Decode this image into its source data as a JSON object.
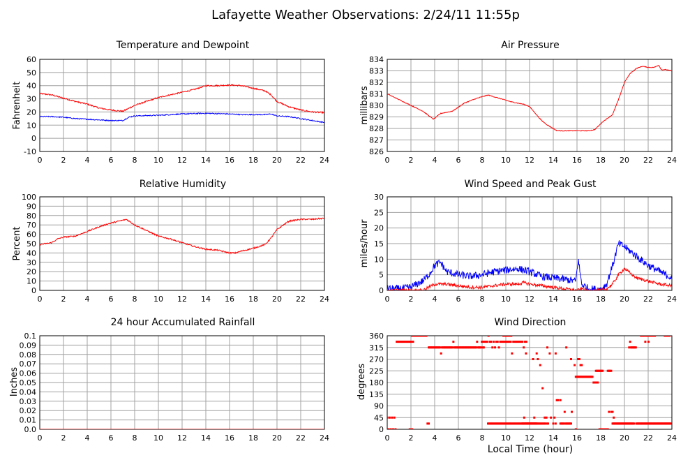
{
  "page": {
    "title": "Lafayette Weather Observations: 2/24/11 11:55p",
    "xlabel": "Local Time (hour)"
  },
  "colors": {
    "red": "#ff0000",
    "blue": "#0000ff",
    "grid": "#a0a0a0",
    "frame": "#000000"
  },
  "chart_data": [
    {
      "id": "temp",
      "type": "line",
      "title": "Temperature and Dewpoint",
      "ylabel": "Fahrenheit",
      "xlim": [
        0,
        24
      ],
      "ylim": [
        -10,
        60
      ],
      "xticks": [
        "0",
        "2",
        "4",
        "6",
        "8",
        "10",
        "12",
        "14",
        "16",
        "18",
        "20",
        "22",
        "24"
      ],
      "yticks": [
        "-10",
        "0",
        "10",
        "20",
        "30",
        "40",
        "50",
        "60"
      ],
      "series": [
        {
          "color": "#ff0000",
          "x": [
            0,
            1,
            2,
            3,
            4,
            5,
            6,
            7,
            8,
            9,
            10,
            11,
            12,
            13,
            14,
            15,
            16,
            17,
            18,
            19,
            19.5,
            20,
            21,
            22,
            23,
            24
          ],
          "y": [
            34,
            33,
            30.5,
            28,
            26,
            23,
            21.5,
            20.5,
            25,
            28,
            31,
            33,
            35,
            37,
            40,
            40,
            40.5,
            40,
            38,
            36,
            33,
            28,
            24,
            21.5,
            20,
            19.5
          ],
          "noise": 0.5
        },
        {
          "color": "#0000ff",
          "x": [
            0,
            1,
            2,
            3,
            4,
            5,
            6,
            7,
            7.5,
            8,
            10,
            12,
            14,
            16,
            17,
            18,
            19,
            19.5,
            20,
            21,
            22,
            23,
            24
          ],
          "y": [
            16.5,
            16.5,
            16,
            15,
            14.5,
            14,
            13.5,
            13.5,
            16,
            17,
            17.5,
            18.5,
            19,
            18.5,
            18,
            18,
            18,
            18.5,
            17,
            16.5,
            15,
            13.5,
            12
          ],
          "noise": 0.4
        }
      ]
    },
    {
      "id": "pressure",
      "type": "line",
      "title": "Air Pressure",
      "ylabel": "millibars",
      "xlim": [
        0,
        24
      ],
      "ylim": [
        826,
        834
      ],
      "xticks": [
        "0",
        "2",
        "4",
        "6",
        "8",
        "10",
        "12",
        "14",
        "16",
        "18",
        "20",
        "22",
        "24"
      ],
      "yticks": [
        "826",
        "827",
        "828",
        "829",
        "830",
        "831",
        "832",
        "833",
        "834"
      ],
      "series": [
        {
          "color": "#ff0000",
          "x": [
            0,
            1,
            2,
            3,
            3.9,
            4.5,
            5.5,
            6.5,
            7.5,
            8.5,
            9.5,
            10.5,
            11.5,
            12,
            12.5,
            13,
            13.5,
            14.3,
            15,
            16,
            17,
            17.5,
            18.2,
            19,
            19.5,
            20,
            20.5,
            21,
            21.5,
            22,
            22.5,
            22.9,
            23.1,
            23.5,
            24
          ],
          "y": [
            831,
            830.5,
            830,
            829.5,
            828.8,
            829.3,
            829.5,
            830.2,
            830.6,
            830.9,
            830.6,
            830.3,
            830.1,
            829.9,
            829.3,
            828.7,
            828.3,
            827.8,
            827.8,
            827.8,
            827.8,
            827.9,
            828.6,
            829.2,
            830.5,
            832,
            832.8,
            833.2,
            833.4,
            833.3,
            833.3,
            833.5,
            833.1,
            833.1,
            833
          ],
          "noise": 0.03
        }
      ]
    },
    {
      "id": "humidity",
      "type": "line",
      "title": "Relative Humidity",
      "ylabel": "Percent",
      "xlim": [
        0,
        24
      ],
      "ylim": [
        0,
        100
      ],
      "xticks": [
        "0",
        "2",
        "4",
        "6",
        "8",
        "10",
        "12",
        "14",
        "16",
        "18",
        "20",
        "22",
        "24"
      ],
      "yticks": [
        "0",
        "10",
        "20",
        "30",
        "40",
        "50",
        "60",
        "70",
        "80",
        "90",
        "100"
      ],
      "series": [
        {
          "color": "#ff0000",
          "x": [
            0,
            1,
            1.5,
            2,
            3,
            4,
            5,
            6,
            7,
            7.3,
            8,
            9,
            10,
            11,
            12,
            13,
            14,
            15,
            16,
            16.5,
            17,
            18,
            19,
            19.5,
            20,
            21,
            22,
            23,
            24
          ],
          "y": [
            49,
            51,
            55,
            57,
            58,
            63,
            68,
            72,
            75,
            76,
            70,
            64,
            58,
            55,
            51,
            47,
            44,
            43,
            40,
            40,
            42,
            45,
            49,
            56,
            65,
            74,
            76,
            76,
            77
          ],
          "noise": 0.7
        }
      ]
    },
    {
      "id": "wind",
      "type": "line",
      "title": "Wind Speed and Peak Gust",
      "ylabel": "miles/hour",
      "xlim": [
        0,
        24
      ],
      "ylim": [
        0,
        30
      ],
      "xticks": [
        "0",
        "2",
        "4",
        "6",
        "8",
        "10",
        "12",
        "14",
        "16",
        "18",
        "20",
        "22",
        "24"
      ],
      "yticks": [
        "0",
        "5",
        "10",
        "15",
        "20",
        "25",
        "30"
      ],
      "series": [
        {
          "color": "#0000ff",
          "x": [
            0,
            1,
            2,
            3,
            3.5,
            4,
            4.5,
            5,
            6,
            7,
            8,
            9,
            10,
            11,
            12,
            13,
            14,
            15,
            15.9,
            16.1,
            16.4,
            17,
            18,
            18.5,
            19,
            19.5,
            20,
            21,
            22,
            23,
            24
          ],
          "y": [
            0.5,
            0.5,
            1,
            3,
            5,
            8,
            9,
            6,
            5,
            4.5,
            5,
            6,
            6.5,
            7,
            6,
            4.5,
            4,
            3.5,
            3,
            10,
            2,
            0.5,
            0.3,
            2,
            8,
            15,
            14,
            11,
            8,
            6,
            4
          ],
          "noise": 1.2,
          "min": 0
        },
        {
          "color": "#ff0000",
          "x": [
            0,
            2,
            3,
            3.5,
            4,
            5,
            6,
            7,
            8,
            9,
            10,
            11,
            11.5,
            12,
            13,
            14,
            15,
            16,
            16.5,
            17,
            18,
            18.5,
            19,
            19.5,
            20,
            21,
            22,
            23,
            24
          ],
          "y": [
            0,
            0,
            0,
            1,
            2,
            2,
            1.5,
            1,
            1,
            1.5,
            2,
            2,
            2.5,
            2,
            1.5,
            1,
            0.5,
            0,
            0.5,
            0,
            0,
            0.5,
            2,
            5,
            7,
            4,
            3,
            2,
            1.5
          ],
          "noise": 0.5,
          "min": 0
        }
      ]
    },
    {
      "id": "rain",
      "type": "line",
      "title": "24 hour Accumulated Rainfall",
      "ylabel": "Inches",
      "xlim": [
        0,
        24
      ],
      "ylim": [
        0,
        0.1
      ],
      "xticks": [
        "0",
        "2",
        "4",
        "6",
        "8",
        "10",
        "12",
        "14",
        "16",
        "18",
        "20",
        "22",
        "24"
      ],
      "yticks": [
        "0.0",
        "0.01",
        "0.02",
        "0.03",
        "0.04",
        "0.05",
        "0.06",
        "0.07",
        "0.08",
        "0.09",
        "0.1"
      ],
      "series": [
        {
          "color": "#ff0000",
          "x": [
            0,
            24
          ],
          "y": [
            0,
            0
          ],
          "noise": 0
        }
      ]
    },
    {
      "id": "direction",
      "type": "scatter",
      "title": "Wind Direction",
      "ylabel": "degrees",
      "xlim": [
        0,
        24
      ],
      "ylim": [
        0,
        360
      ],
      "xticks": [
        "0",
        "2",
        "4",
        "6",
        "8",
        "10",
        "12",
        "14",
        "16",
        "18",
        "20",
        "22",
        "24"
      ],
      "yticks": [
        "0",
        "45",
        "90",
        "135",
        "180",
        "225",
        "270",
        "315",
        "360"
      ],
      "series": [
        {
          "color": "#ff0000",
          "points": [
            [
              0,
              45
            ],
            [
              0.1,
              0
            ],
            [
              0.2,
              45
            ],
            [
              0.3,
              0
            ],
            [
              0.4,
              45
            ],
            [
              0.5,
              0
            ],
            [
              0.6,
              45
            ],
            [
              0.7,
              0
            ],
            [
              1.9,
              0
            ],
            [
              2.1,
              0
            ],
            [
              3.4,
              22
            ],
            [
              3.5,
              22
            ],
            [
              13.1,
              158
            ],
            [
              13.8,
              45
            ],
            [
              14.3,
              112
            ],
            [
              14.4,
              112
            ],
            [
              14.6,
              112
            ],
            [
              15.9,
              0
            ],
            [
              18.7,
              67
            ],
            [
              18.9,
              67
            ],
            [
              19,
              67
            ],
            [
              19.1,
              45
            ],
            [
              13.3,
              22
            ],
            [
              14,
              22
            ],
            [
              14.1,
              45
            ],
            [
              14.2,
              22
            ],
            [
              16.1,
              270
            ],
            [
              16.2,
              270
            ],
            [
              16.3,
              247
            ],
            [
              16.4,
              247
            ],
            [
              12.7,
              270
            ],
            [
              12.9,
              247
            ],
            [
              11.7,
              292
            ],
            [
              12.3,
              270
            ],
            [
              12.6,
              292
            ],
            [
              13.5,
              315
            ],
            [
              13.7,
              292
            ],
            [
              14.2,
              292
            ],
            [
              15.1,
              315
            ],
            [
              15.5,
              270
            ],
            [
              15.8,
              247
            ]
          ],
          "runs": [
            {
              "x0": 0.8,
              "x1": 2.0,
              "y": 337,
              "step": 0.08
            },
            {
              "x0": 2.1,
              "x1": 3.3,
              "y": 360,
              "step": 0.08,
              "jitter": [
                337,
                315
              ]
            },
            {
              "x0": 3.5,
              "x1": 8.2,
              "y": 315,
              "step": 0.08,
              "jitter": [
                292,
                337
              ]
            },
            {
              "x0": 8.1,
              "x1": 11.8,
              "y": 337,
              "step": 0.11,
              "jitter": [
                360,
                315,
                292
              ]
            },
            {
              "x0": 8.5,
              "x1": 12.5,
              "y": 22,
              "step": 0.07
            },
            {
              "x0": 9.8,
              "x1": 10.5,
              "y": 360,
              "step": 0.06
            },
            {
              "x0": 11.4,
              "x1": 12.6,
              "y": 22,
              "step": 0.05,
              "jitter": [
                45
              ]
            },
            {
              "x0": 12.3,
              "x1": 13.6,
              "y": 22,
              "step": 0.07,
              "jitter": [
                45
              ]
            },
            {
              "x0": 14.6,
              "x1": 15.6,
              "y": 22,
              "step": 0.06,
              "jitter": [
                45,
                67
              ]
            },
            {
              "x0": 15.9,
              "x1": 17.3,
              "y": 202,
              "step": 0.07
            },
            {
              "x0": 17.4,
              "x1": 17.8,
              "y": 180,
              "step": 0.07
            },
            {
              "x0": 17.6,
              "x1": 18.2,
              "y": 225,
              "step": 0.07
            },
            {
              "x0": 18.6,
              "x1": 18.9,
              "y": 225,
              "step": 0.07
            },
            {
              "x0": 17.9,
              "x1": 18.6,
              "y": 0,
              "step": 0.05
            },
            {
              "x0": 19.0,
              "x1": 20.8,
              "y": 22,
              "step": 0.05
            },
            {
              "x0": 20.4,
              "x1": 21.0,
              "y": 315,
              "step": 0.08,
              "jitter": [
                292,
                337
              ]
            },
            {
              "x0": 21.0,
              "x1": 23.9,
              "y": 22,
              "step": 0.05
            },
            {
              "x0": 21.4,
              "x1": 22.6,
              "y": 360,
              "step": 0.09,
              "jitter": [
                337
              ]
            },
            {
              "x0": 23.4,
              "x1": 23.8,
              "y": 360,
              "step": 0.1
            }
          ]
        }
      ]
    }
  ]
}
